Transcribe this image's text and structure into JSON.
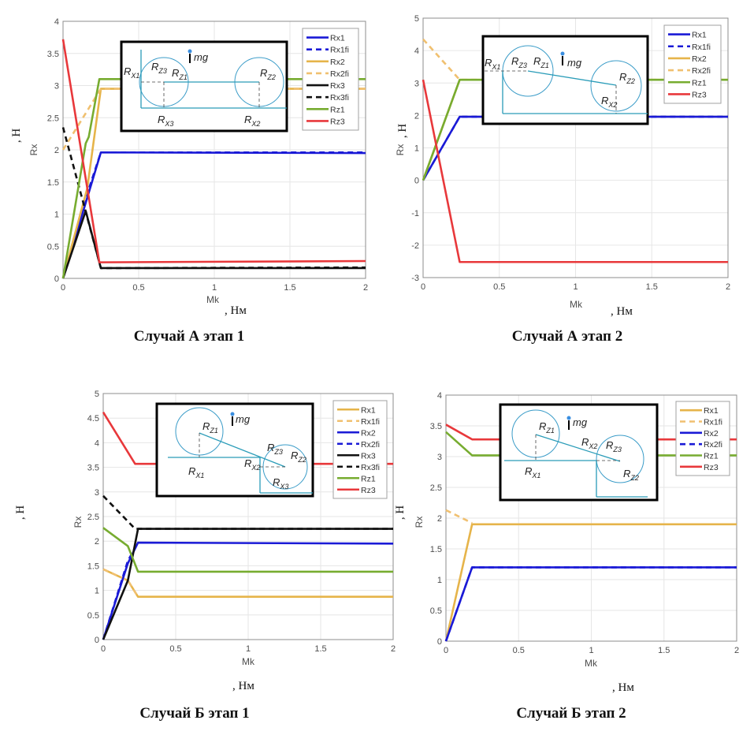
{
  "chart_data": [
    {
      "type": "line",
      "title": "Случай А этап 1",
      "xlabel": "Mk",
      "xunit": ", Нм",
      "ylabel": "Rx",
      "yunit": ", Н",
      "xlim": [
        0,
        2
      ],
      "ylim": [
        0,
        4
      ],
      "xticks": [
        0,
        0.5,
        1,
        1.5,
        2
      ],
      "yticks": [
        0,
        0.5,
        1,
        1.5,
        2,
        2.5,
        3,
        3.5,
        4
      ],
      "grid": true,
      "legend": "top-right",
      "series": [
        {
          "name": "Rx1",
          "color": "#1a1ad6",
          "dash": false,
          "points": [
            [
              0,
              0
            ],
            [
              0.25,
              1.96
            ],
            [
              2,
              1.95
            ]
          ]
        },
        {
          "name": "Rx1fi",
          "color": "#1a1ad6",
          "dash": true,
          "points": [
            [
              0,
              0
            ],
            [
              0.13,
              1.1
            ],
            [
              0.25,
              1.96
            ],
            [
              2,
              1.96
            ]
          ]
        },
        {
          "name": "Rx2",
          "color": "#e6b44a",
          "dash": false,
          "points": [
            [
              0,
              0
            ],
            [
              0.16,
              1.4
            ],
            [
              0.25,
              2.95
            ],
            [
              2,
              2.95
            ]
          ]
        },
        {
          "name": "Rx2fi",
          "color": "#f0c070",
          "dash": true,
          "points": [
            [
              0,
              2.0
            ],
            [
              0.25,
              2.95
            ],
            [
              2,
              2.95
            ]
          ]
        },
        {
          "name": "Rx3",
          "color": "#111111",
          "dash": false,
          "points": [
            [
              0,
              0
            ],
            [
              0.15,
              1.05
            ],
            [
              0.25,
              0.16
            ],
            [
              2,
              0.16
            ]
          ]
        },
        {
          "name": "Rx3fi",
          "color": "#111111",
          "dash": true,
          "points": [
            [
              0,
              2.35
            ],
            [
              0.25,
              0.16
            ],
            [
              2,
              0.17
            ]
          ]
        },
        {
          "name": "Rz1",
          "color": "#77ac30",
          "dash": false,
          "points": [
            [
              0,
              0
            ],
            [
              0.15,
              2.1
            ],
            [
              0.17,
              2.2
            ],
            [
              0.24,
              3.1
            ],
            [
              2,
              3.1
            ]
          ]
        },
        {
          "name": "Rz3",
          "color": "#e8383b",
          "dash": false,
          "points": [
            [
              0,
              3.72
            ],
            [
              0.24,
              0.25
            ],
            [
              2,
              0.27
            ]
          ]
        }
      ],
      "inset": {
        "labels": [
          {
            "base": "R",
            "sub": "X1"
          },
          {
            "base": "R",
            "sub": "Z3"
          },
          {
            "base": "R",
            "sub": "Z1"
          },
          {
            "base": "mg",
            "sub": ""
          },
          {
            "base": "R",
            "sub": "Z2"
          },
          {
            "base": "R",
            "sub": "X3"
          },
          {
            "base": "R",
            "sub": "X2"
          }
        ]
      }
    },
    {
      "type": "line",
      "title": "Случай А этап 2",
      "xlabel": "Mk",
      "xunit": ", Нм",
      "ylabel": "Rx",
      "yunit": ", Н",
      "xlim": [
        0,
        2
      ],
      "ylim": [
        -3,
        5
      ],
      "xticks": [
        0,
        0.5,
        1,
        1.5,
        2
      ],
      "yticks": [
        -3,
        -2,
        -1,
        0,
        1,
        2,
        3,
        4,
        5
      ],
      "grid": true,
      "legend": "top-right",
      "series": [
        {
          "name": "Rx1",
          "color": "#1a1ad6",
          "dash": false,
          "points": [
            [
              0,
              0
            ],
            [
              0.24,
              1.96
            ],
            [
              2,
              1.96
            ]
          ]
        },
        {
          "name": "Rx1fi",
          "color": "#1a1ad6",
          "dash": true,
          "points": [
            [
              0,
              0
            ],
            [
              0.24,
              1.96
            ],
            [
              2,
              1.96
            ]
          ]
        },
        {
          "name": "Rx2",
          "color": "#e6b44a",
          "dash": false,
          "points": [
            [
              0,
              0
            ],
            [
              0.24,
              3.1
            ],
            [
              2,
              3.1
            ]
          ]
        },
        {
          "name": "Rx2fi",
          "color": "#f0c070",
          "dash": true,
          "points": [
            [
              0,
              4.35
            ],
            [
              0.24,
              3.1
            ],
            [
              2,
              3.1
            ]
          ]
        },
        {
          "name": "Rz1",
          "color": "#77ac30",
          "dash": false,
          "points": [
            [
              0,
              0
            ],
            [
              0.24,
              3.1
            ],
            [
              2,
              3.1
            ]
          ]
        },
        {
          "name": "Rz3",
          "color": "#e8383b",
          "dash": false,
          "points": [
            [
              0,
              3.1
            ],
            [
              0.24,
              -2.52
            ],
            [
              2,
              -2.52
            ]
          ]
        }
      ],
      "inset": {
        "labels": [
          {
            "base": "R",
            "sub": "X1"
          },
          {
            "base": "R",
            "sub": "Z3"
          },
          {
            "base": "R",
            "sub": "Z1"
          },
          {
            "base": "mg",
            "sub": ""
          },
          {
            "base": "R",
            "sub": "Z2"
          },
          {
            "base": "R",
            "sub": "X2"
          }
        ]
      }
    },
    {
      "type": "line",
      "title": "Случай Б этап 1",
      "xlabel": "Mk",
      "xunit": ", Нм",
      "ylabel": "Rx",
      "yunit": ", Н",
      "xlim": [
        0,
        2
      ],
      "ylim": [
        0,
        5
      ],
      "xticks": [
        0,
        0.5,
        1,
        1.5,
        2
      ],
      "yticks": [
        0,
        0.5,
        1,
        1.5,
        2,
        2.5,
        3,
        3.5,
        4,
        4.5,
        5
      ],
      "grid": true,
      "legend": "top-right",
      "series": [
        {
          "name": "Rx1",
          "color": "#e6b44a",
          "dash": false,
          "points": [
            [
              0,
              1.43
            ],
            [
              0.17,
              1.2
            ],
            [
              0.24,
              0.87
            ],
            [
              2,
              0.87
            ]
          ]
        },
        {
          "name": "Rx1fi",
          "color": "#f0c070",
          "dash": true,
          "points": [
            [
              0,
              1.43
            ],
            [
              0.17,
              1.2
            ],
            [
              0.24,
              0.87
            ]
          ]
        },
        {
          "name": "Rx2",
          "color": "#1a1ad6",
          "dash": false,
          "points": [
            [
              0,
              0
            ],
            [
              0.17,
              1.55
            ],
            [
              0.24,
              1.97
            ],
            [
              2,
              1.95
            ]
          ]
        },
        {
          "name": "Rx2fi",
          "color": "#1a1ad6",
          "dash": true,
          "points": [
            [
              0,
              0
            ],
            [
              0.17,
              1.6
            ],
            [
              0.24,
              1.97
            ]
          ]
        },
        {
          "name": "Rx3",
          "color": "#111111",
          "dash": false,
          "points": [
            [
              0,
              0
            ],
            [
              0.17,
              1.2
            ],
            [
              0.24,
              2.25
            ],
            [
              2,
              2.25
            ]
          ]
        },
        {
          "name": "Rx3fi",
          "color": "#111111",
          "dash": true,
          "points": [
            [
              0,
              2.92
            ],
            [
              0.22,
              2.25
            ],
            [
              2,
              2.25
            ]
          ]
        },
        {
          "name": "Rz1",
          "color": "#77ac30",
          "dash": false,
          "points": [
            [
              0,
              2.27
            ],
            [
              0.17,
              1.9
            ],
            [
              0.24,
              1.38
            ],
            [
              2,
              1.38
            ]
          ]
        },
        {
          "name": "Rz3",
          "color": "#e8383b",
          "dash": false,
          "points": [
            [
              0,
              4.62
            ],
            [
              0.22,
              3.57
            ],
            [
              2,
              3.57
            ]
          ]
        }
      ],
      "inset": {
        "labels": [
          {
            "base": "R",
            "sub": "Z1"
          },
          {
            "base": "mg",
            "sub": ""
          },
          {
            "base": "R",
            "sub": "X1"
          },
          {
            "base": "R",
            "sub": "X2"
          },
          {
            "base": "R",
            "sub": "Z3"
          },
          {
            "base": "R",
            "sub": "Z2"
          },
          {
            "base": "R",
            "sub": "X3"
          }
        ]
      }
    },
    {
      "type": "line",
      "title": "Случай Б этап 2",
      "xlabel": "Mk",
      "xunit": ", Нм",
      "ylabel": "Rx",
      "yunit": ", Н",
      "xlim": [
        0,
        2
      ],
      "ylim": [
        0,
        4
      ],
      "xticks": [
        0,
        0.5,
        1,
        1.5,
        2
      ],
      "yticks": [
        0,
        0.5,
        1,
        1.5,
        2,
        2.5,
        3,
        3.5,
        4
      ],
      "grid": true,
      "legend": "top-right",
      "series": [
        {
          "name": "Rx1",
          "color": "#e6b44a",
          "dash": false,
          "points": [
            [
              0,
              0
            ],
            [
              0.18,
              1.9
            ],
            [
              2,
              1.9
            ]
          ]
        },
        {
          "name": "Rx1fi",
          "color": "#f0c070",
          "dash": true,
          "points": [
            [
              0,
              2.13
            ],
            [
              0.18,
              1.92
            ]
          ]
        },
        {
          "name": "Rx2",
          "color": "#1a1ad6",
          "dash": false,
          "points": [
            [
              0,
              0
            ],
            [
              0.18,
              1.2
            ],
            [
              2,
              1.2
            ]
          ]
        },
        {
          "name": "Rx2fi",
          "color": "#1a1ad6",
          "dash": true,
          "points": [
            [
              0,
              0
            ],
            [
              0.18,
              1.2
            ],
            [
              2,
              1.2
            ]
          ]
        },
        {
          "name": "Rz1",
          "color": "#77ac30",
          "dash": false,
          "points": [
            [
              0,
              3.4
            ],
            [
              0.18,
              3.02
            ],
            [
              2,
              3.02
            ]
          ]
        },
        {
          "name": "Rz3",
          "color": "#e8383b",
          "dash": false,
          "points": [
            [
              0,
              3.52
            ],
            [
              0.18,
              3.28
            ],
            [
              2,
              3.28
            ]
          ]
        }
      ],
      "inset": {
        "labels": [
          {
            "base": "R",
            "sub": "Z1"
          },
          {
            "base": "mg",
            "sub": ""
          },
          {
            "base": "R",
            "sub": "X2"
          },
          {
            "base": "R",
            "sub": "Z3"
          },
          {
            "base": "R",
            "sub": "X1"
          },
          {
            "base": "R",
            "sub": "Z2"
          }
        ]
      }
    }
  ]
}
